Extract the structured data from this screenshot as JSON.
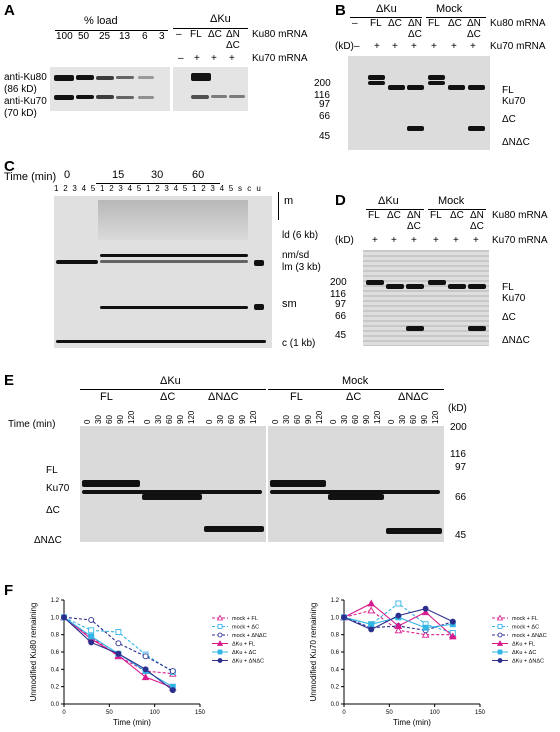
{
  "panels": {
    "a": "A",
    "b": "B",
    "c": "C",
    "d": "D",
    "e": "E",
    "f": "F"
  },
  "panel_a": {
    "group_percent": "% load",
    "group_dku": "ΔKu",
    "percents": [
      "100",
      "50",
      "25",
      "13",
      "6",
      "3"
    ],
    "ku80_opts": [
      "–",
      "FL",
      "ΔC",
      "ΔN"
    ],
    "ku80_opt_dc": "ΔC",
    "ku70_opts": [
      "–",
      "+",
      "+",
      "+"
    ],
    "row_ku80_mrna": "Ku80 mRNA",
    "row_ku70_mrna": "Ku70 mRNA",
    "anti_ku80": "anti-Ku80",
    "anti_ku80_kd": "(86 kD)",
    "anti_ku70": "anti-Ku70",
    "anti_ku70_kd": "(70 kD)"
  },
  "panel_b": {
    "group_dku": "ΔKu",
    "group_mock": "Mock",
    "ku80_opts": [
      "–",
      "FL",
      "ΔC",
      "ΔN",
      "FL",
      "ΔC",
      "ΔN"
    ],
    "sub_dc": "ΔC",
    "ku70_opts": [
      "–",
      "+",
      "+",
      "+",
      "+",
      "+",
      "+"
    ],
    "row_ku80_mrna": "Ku80 mRNA",
    "row_ku70_mrna": "Ku70 mRNA",
    "kd_label": "(kD)",
    "markers": [
      "200",
      "116",
      "97",
      "66",
      "45"
    ],
    "bands": [
      "FL",
      "Ku70",
      "ΔC",
      "ΔNΔC"
    ]
  },
  "panel_c": {
    "time_label": "Time (min)",
    "times": [
      "0",
      "15",
      "30",
      "60"
    ],
    "lanes": [
      "1",
      "2",
      "3",
      "4",
      "5",
      "1",
      "2",
      "3",
      "4",
      "5",
      "1",
      "2",
      "3",
      "4",
      "5",
      "1",
      "2",
      "3",
      "4",
      "5",
      "s",
      "c",
      "u"
    ],
    "species": [
      "m",
      "ld (6 kb)",
      "nm/sd",
      "lm (3 kb)",
      "sm",
      "c (1 kb)"
    ]
  },
  "panel_d": {
    "group_dku": "ΔKu",
    "group_mock": "Mock",
    "ku80_opts": [
      "FL",
      "ΔC",
      "ΔN",
      "FL",
      "ΔC",
      "ΔN"
    ],
    "sub_dc": "ΔC",
    "ku70_opts": [
      "+",
      "+",
      "+",
      "+",
      "+",
      "+"
    ],
    "row_ku80_mrna": "Ku80 mRNA",
    "row_ku70_mrna": "Ku70 mRNA",
    "kd_label": "(kD)",
    "markers": [
      "200",
      "116",
      "97",
      "66",
      "45"
    ],
    "bands": [
      "FL",
      "Ku70",
      "ΔC",
      "ΔNΔC"
    ]
  },
  "panel_e": {
    "group_dku": "ΔKu",
    "group_mock": "Mock",
    "constructs": [
      "FL",
      "ΔC",
      "ΔNΔC"
    ],
    "time_label": "Time (min)",
    "times": [
      "0",
      "30",
      "60",
      "90",
      "120"
    ],
    "kd_label": "(kD)",
    "markers": [
      "200",
      "116",
      "97",
      "66",
      "45"
    ],
    "bands": [
      "FL",
      "Ku70",
      "ΔC",
      "ΔNΔC"
    ]
  },
  "colors": {
    "magenta": "#d81b8c",
    "cyan": "#33b5e5",
    "navy": "#2b2e8c"
  },
  "chart_data": [
    {
      "type": "line",
      "ylabel": "Unmodified Ku80 remaining",
      "xlabel": "Time (min)",
      "xlim": [
        0,
        150
      ],
      "ylim": [
        0,
        1.2
      ],
      "xticks": [
        0,
        50,
        100,
        150
      ],
      "yticks": [
        0,
        0.2,
        0.4,
        0.6,
        0.8,
        1.0,
        1.2
      ],
      "x": [
        0,
        30,
        60,
        90,
        120
      ],
      "series": [
        {
          "name": "mock + FL",
          "values": [
            1.0,
            0.77,
            0.55,
            0.38,
            0.35
          ],
          "color": "#d81b8c",
          "marker": "triangle-open",
          "dashed": true
        },
        {
          "name": "mock + ΔC",
          "values": [
            1.0,
            0.85,
            0.83,
            0.57,
            0.37
          ],
          "color": "#33b5e5",
          "marker": "square-open",
          "dashed": true
        },
        {
          "name": "mock + ΔNΔC",
          "values": [
            1.0,
            0.97,
            0.7,
            0.55,
            0.38
          ],
          "color": "#2b2e8c",
          "marker": "circle-open",
          "dashed": true
        },
        {
          "name": "ΔKu + FL",
          "values": [
            1.0,
            0.75,
            0.56,
            0.31,
            0.19
          ],
          "color": "#d81b8c",
          "marker": "triangle",
          "dashed": false
        },
        {
          "name": "ΔKu + ΔC",
          "values": [
            1.0,
            0.78,
            0.58,
            0.38,
            0.2
          ],
          "color": "#33b5e5",
          "marker": "square",
          "dashed": false
        },
        {
          "name": "ΔKu + ΔNΔC",
          "values": [
            1.0,
            0.71,
            0.58,
            0.4,
            0.16
          ],
          "color": "#2b2e8c",
          "marker": "circle",
          "dashed": false
        }
      ],
      "legend": "right"
    },
    {
      "type": "line",
      "ylabel": "Unmodified Ku70 remaining",
      "xlabel": "Time (min)",
      "xlim": [
        0,
        150
      ],
      "ylim": [
        0,
        1.2
      ],
      "xticks": [
        0,
        50,
        100,
        150
      ],
      "yticks": [
        0,
        0.2,
        0.4,
        0.6,
        0.8,
        1.0,
        1.2
      ],
      "x": [
        0,
        30,
        60,
        90,
        120
      ],
      "series": [
        {
          "name": "mock + FL",
          "values": [
            1.0,
            1.08,
            0.85,
            0.8,
            0.8
          ],
          "color": "#d81b8c",
          "marker": "triangle-open",
          "dashed": true
        },
        {
          "name": "mock + ΔC",
          "values": [
            1.0,
            0.92,
            1.16,
            0.92,
            0.82
          ],
          "color": "#33b5e5",
          "marker": "square-open",
          "dashed": true
        },
        {
          "name": "mock + ΔNΔC",
          "values": [
            1.0,
            0.88,
            0.9,
            0.85,
            0.95
          ],
          "color": "#2b2e8c",
          "marker": "circle-open",
          "dashed": true
        },
        {
          "name": "ΔKu + FL",
          "values": [
            1.0,
            1.16,
            0.9,
            1.06,
            0.78
          ],
          "color": "#d81b8c",
          "marker": "triangle",
          "dashed": false
        },
        {
          "name": "ΔKu + ΔC",
          "values": [
            1.0,
            0.92,
            1.0,
            0.88,
            0.92
          ],
          "color": "#33b5e5",
          "marker": "square",
          "dashed": false
        },
        {
          "name": "ΔKu + ΔNΔC",
          "values": [
            1.0,
            0.86,
            1.02,
            1.1,
            0.95
          ],
          "color": "#2b2e8c",
          "marker": "circle",
          "dashed": false
        }
      ],
      "legend": "right"
    }
  ]
}
